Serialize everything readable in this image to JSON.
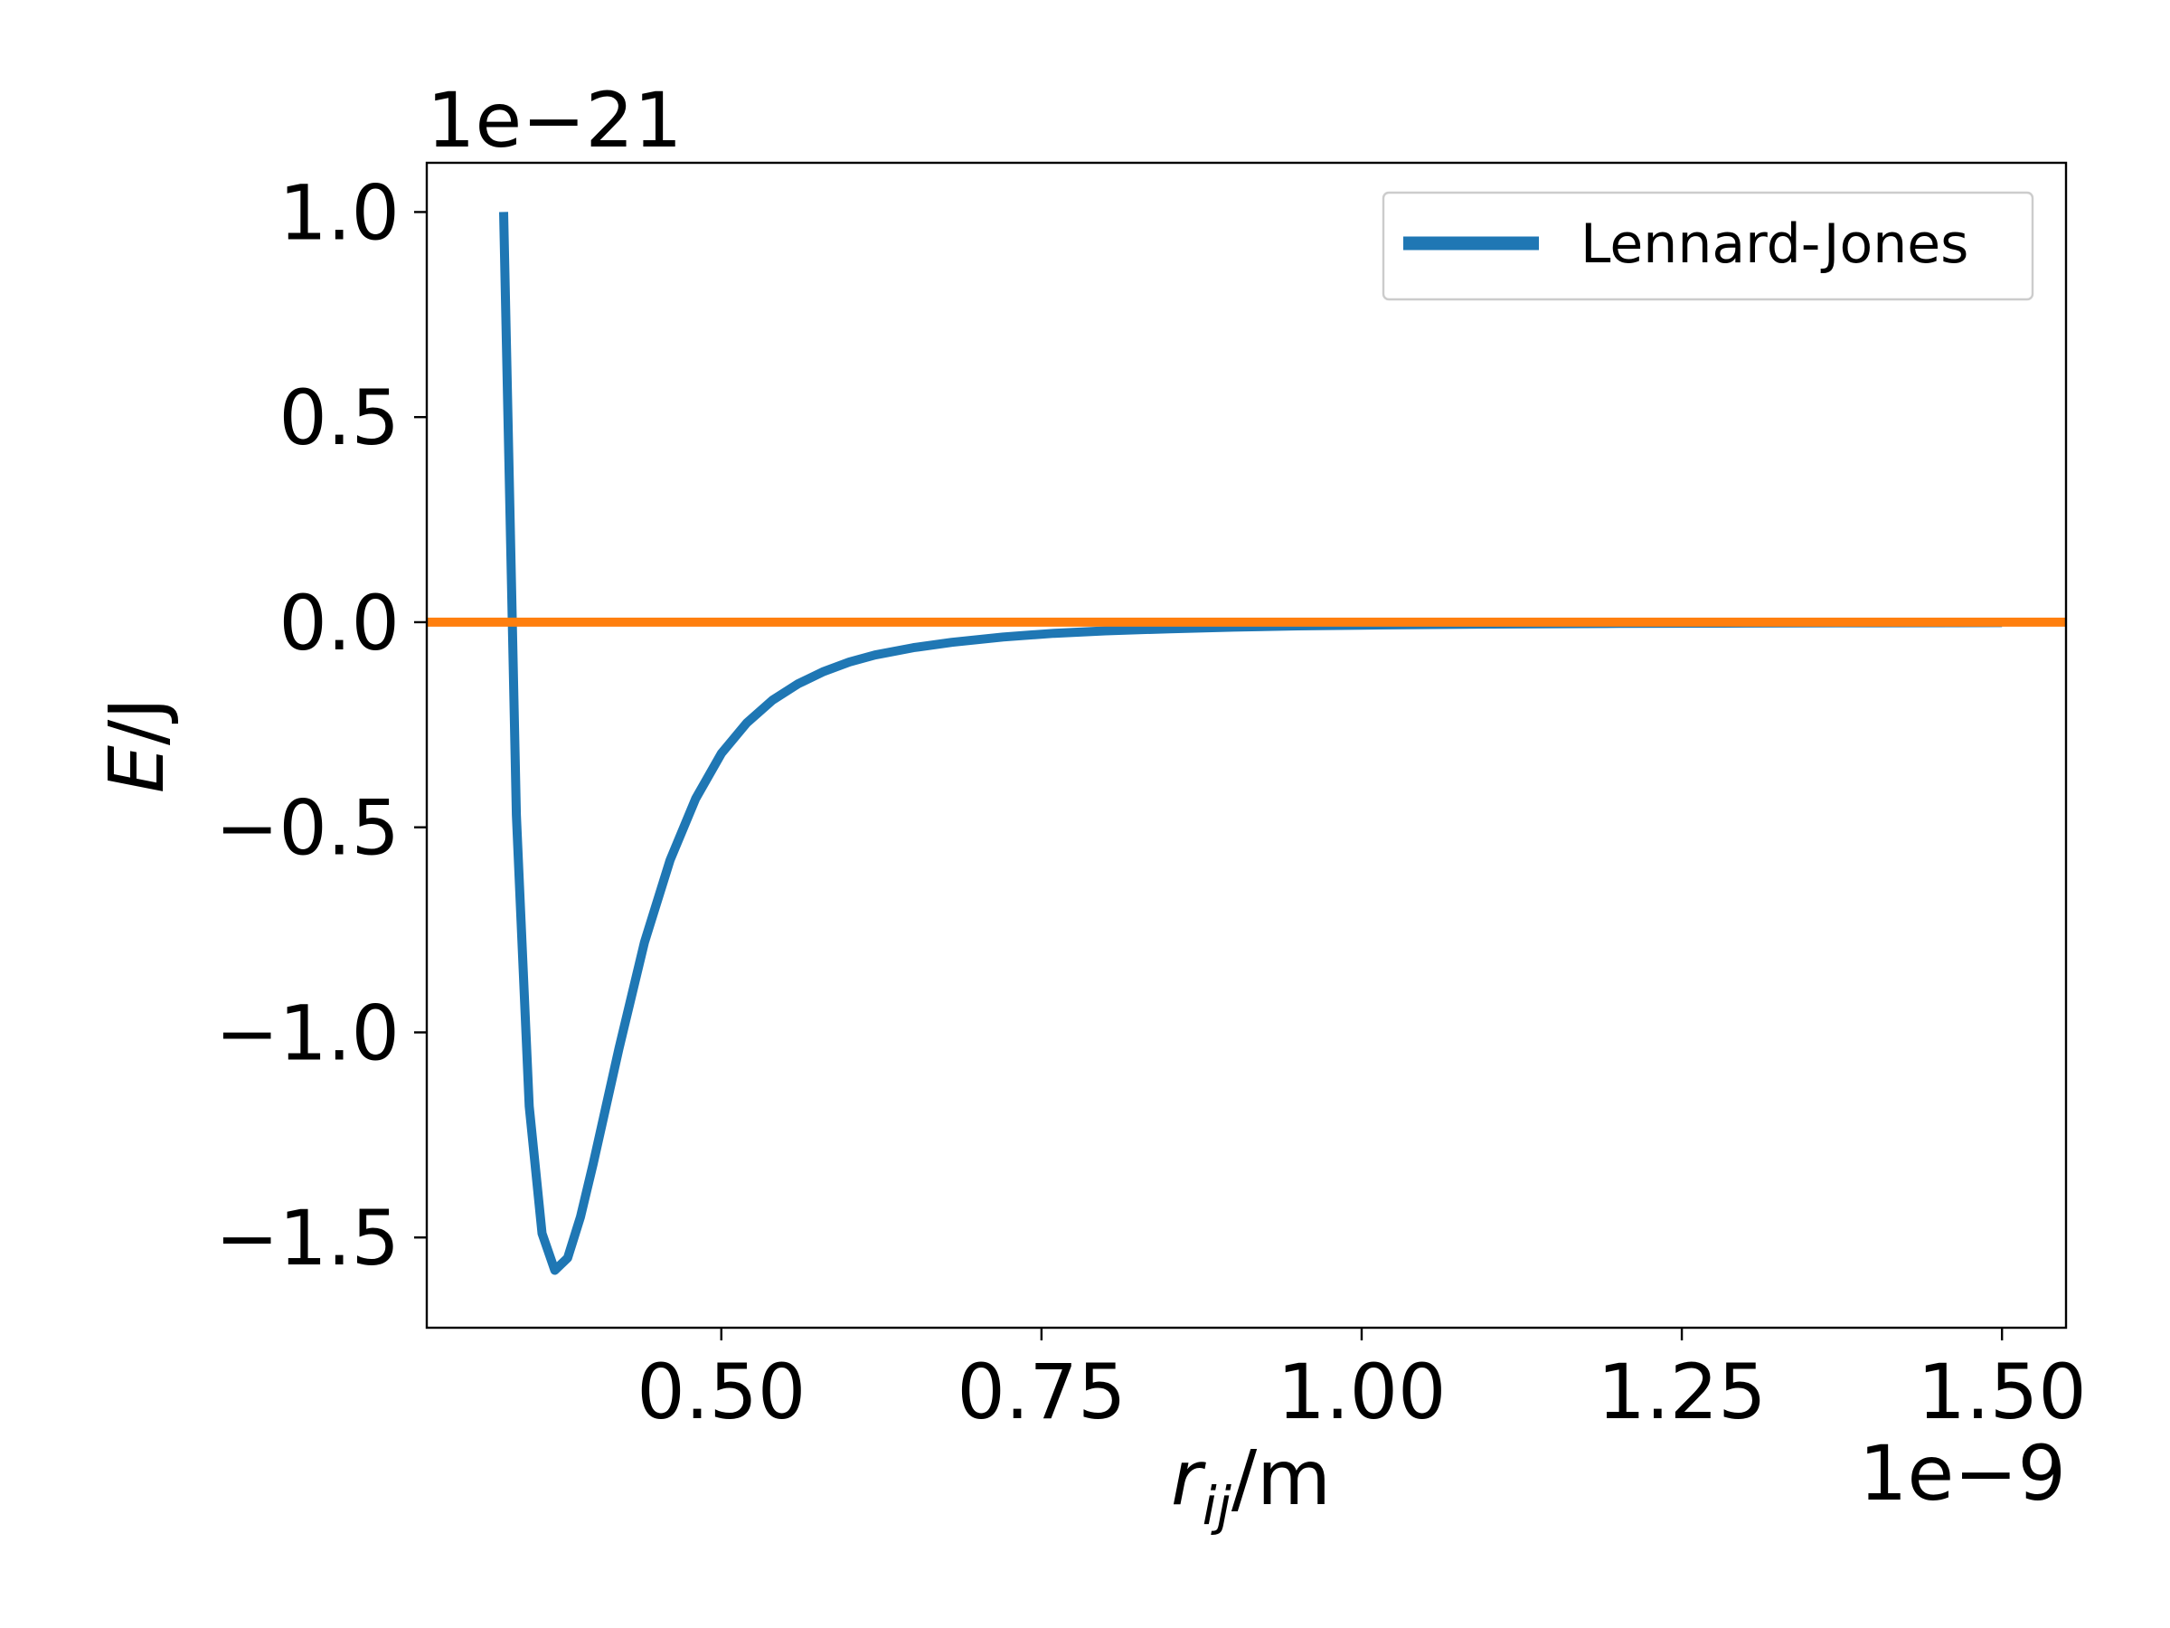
{
  "chart_data": {
    "type": "line",
    "xlabel": {
      "var": "r",
      "sub": "ij",
      "unit": "/m"
    },
    "ylabel": {
      "var": "E",
      "unit": "/J"
    },
    "x_offset_label": "1e−9",
    "y_offset_label": "1e−21",
    "x_scale_factor": 1e-09,
    "y_scale_factor": 1e-21,
    "xlim": [
      0.27,
      1.55
    ],
    "ylim": [
      -1.72,
      1.12
    ],
    "xticks": [
      0.5,
      0.75,
      1.0,
      1.25,
      1.5
    ],
    "xtick_labels": [
      "0.50",
      "0.75",
      "1.00",
      "1.25",
      "1.50"
    ],
    "yticks": [
      1.0,
      0.5,
      0.0,
      -0.5,
      -1.0,
      -1.5
    ],
    "ytick_labels": [
      "1.0",
      "0.5",
      "0.0",
      "−0.5",
      "−1.0",
      "−1.5"
    ],
    "grid": false,
    "legend_position": "top-right",
    "series": [
      {
        "name": "Lennard-Jones",
        "color": "#1f77b4",
        "in_legend": true,
        "x": [
          0.33,
          0.34,
          0.35,
          0.36,
          0.37,
          0.38,
          0.39,
          0.4,
          0.41,
          0.42,
          0.44,
          0.46,
          0.48,
          0.5,
          0.52,
          0.54,
          0.56,
          0.58,
          0.6,
          0.62,
          0.65,
          0.68,
          0.72,
          0.76,
          0.8,
          0.85,
          0.9,
          0.95,
          1.0,
          1.1,
          1.2,
          1.3,
          1.4,
          1.5
        ],
        "y": [
          1.0,
          -0.47,
          -1.18,
          -1.49,
          -1.58,
          -1.55,
          -1.45,
          -1.32,
          -1.18,
          -1.04,
          -0.78,
          -0.58,
          -0.43,
          -0.32,
          -0.245,
          -0.19,
          -0.15,
          -0.12,
          -0.097,
          -0.08,
          -0.062,
          -0.049,
          -0.036,
          -0.027,
          -0.021,
          -0.016,
          -0.012,
          -0.009,
          -0.0072,
          -0.0045,
          -0.003,
          -0.002,
          -0.0014,
          -0.001
        ]
      },
      {
        "name": "",
        "color": "#ff7f0e",
        "in_legend": false,
        "x": [
          0.27,
          1.55
        ],
        "y": [
          0.0,
          0.0
        ]
      }
    ]
  }
}
